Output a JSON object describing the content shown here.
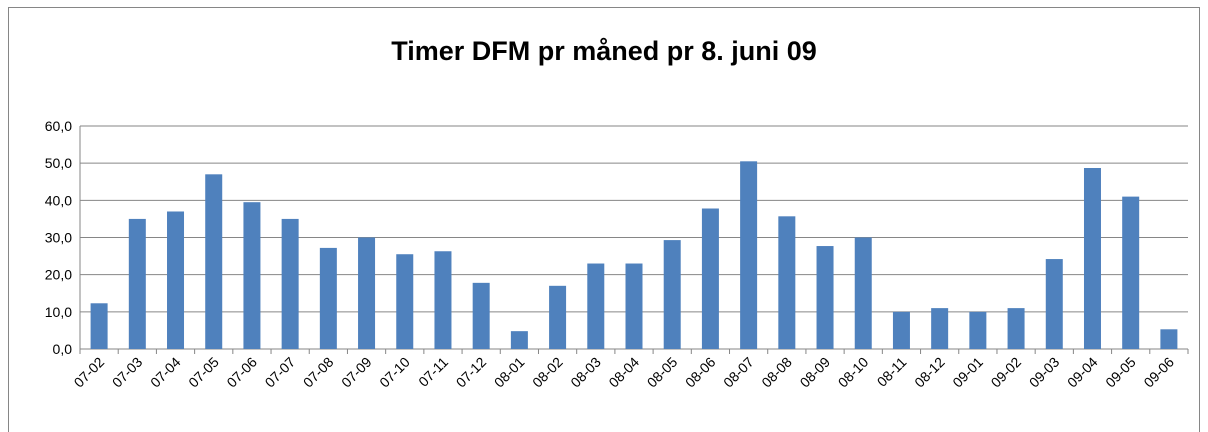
{
  "chart_data": {
    "type": "bar",
    "title": "Timer DFM pr måned pr 8. juni 09",
    "categories": [
      "07-02",
      "07-03",
      "07-04",
      "07-05",
      "07-06",
      "07-07",
      "07-08",
      "07-09",
      "07-10",
      "07-11",
      "07-12",
      "08-01",
      "08-02",
      "08-03",
      "08-04",
      "08-05",
      "08-06",
      "08-07",
      "08-08",
      "08-09",
      "08-10",
      "08-11",
      "08-12",
      "09-01",
      "09-02",
      "09-03",
      "09-04",
      "09-05",
      "09-06"
    ],
    "values": [
      12.3,
      35,
      37,
      47,
      39.5,
      35,
      27.2,
      30,
      25.5,
      26.3,
      17.8,
      4.8,
      17,
      23,
      23,
      29.3,
      37.8,
      50.5,
      35.7,
      27.7,
      30,
      10,
      11,
      10,
      11,
      24.2,
      48.7,
      41,
      5.3
    ],
    "color": "#4f81bd",
    "ylim": [
      0,
      60
    ],
    "yticks": [
      {
        "value": 0,
        "label": "0,0"
      },
      {
        "value": 10,
        "label": "10,0"
      },
      {
        "value": 20,
        "label": "20,0"
      },
      {
        "value": 30,
        "label": "30,0"
      },
      {
        "value": 40,
        "label": "40,0"
      },
      {
        "value": 50,
        "label": "50,0"
      },
      {
        "value": 60,
        "label": "60,0"
      }
    ],
    "grid": true
  }
}
